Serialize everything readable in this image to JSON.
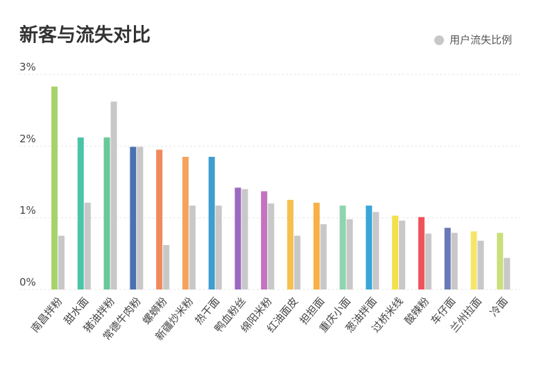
{
  "chart_data": {
    "type": "bar",
    "title": "新客与流失对比",
    "categories": [
      "南昌拌粉",
      "甜水面",
      "猪油拌粉",
      "常德牛肉粉",
      "螺蛳粉",
      "新疆炒米粉",
      "热干面",
      "鸭血粉丝",
      "绵阳米粉",
      "红油面皮",
      "担担面",
      "重庆小面",
      "葱油拌面",
      "过桥米线",
      "酸辣粉",
      "车仔面",
      "兰州拉面",
      "冷面"
    ],
    "series": [
      {
        "colors": [
          "#a6d46a",
          "#4cc4a8",
          "#6ac79a",
          "#4a72b0",
          "#f08a5d",
          "#f5a25d",
          "#3f9dd0",
          "#9b6ac0",
          "#c274c0",
          "#f6c04e",
          "#f7b046",
          "#8fd4b0",
          "#3aa6d8",
          "#f6e04a",
          "#f0525a",
          "#6a78b8",
          "#f5e66a",
          "#c9e07a"
        ],
        "values": [
          2.83,
          2.12,
          2.12,
          1.99,
          1.95,
          1.85,
          1.85,
          1.42,
          1.37,
          1.25,
          1.21,
          1.17,
          1.17,
          1.03,
          1.01,
          0.86,
          0.81,
          0.79
        ]
      },
      {
        "name": "用户流失比例",
        "color": "#c8c8c8",
        "values": [
          0.75,
          1.21,
          2.62,
          1.99,
          0.62,
          1.17,
          1.17,
          1.4,
          1.2,
          0.75,
          0.91,
          0.98,
          1.08,
          0.96,
          0.78,
          0.79,
          0.68,
          0.44
        ]
      }
    ],
    "ylim": [
      0,
      3.05
    ],
    "yticks": [
      {
        "value": 0,
        "label": "0%"
      },
      {
        "value": 1,
        "label": "1%"
      },
      {
        "value": 2,
        "label": "2%"
      },
      {
        "value": 3,
        "label": "3%"
      }
    ],
    "grid": true,
    "legend": "top-right"
  }
}
